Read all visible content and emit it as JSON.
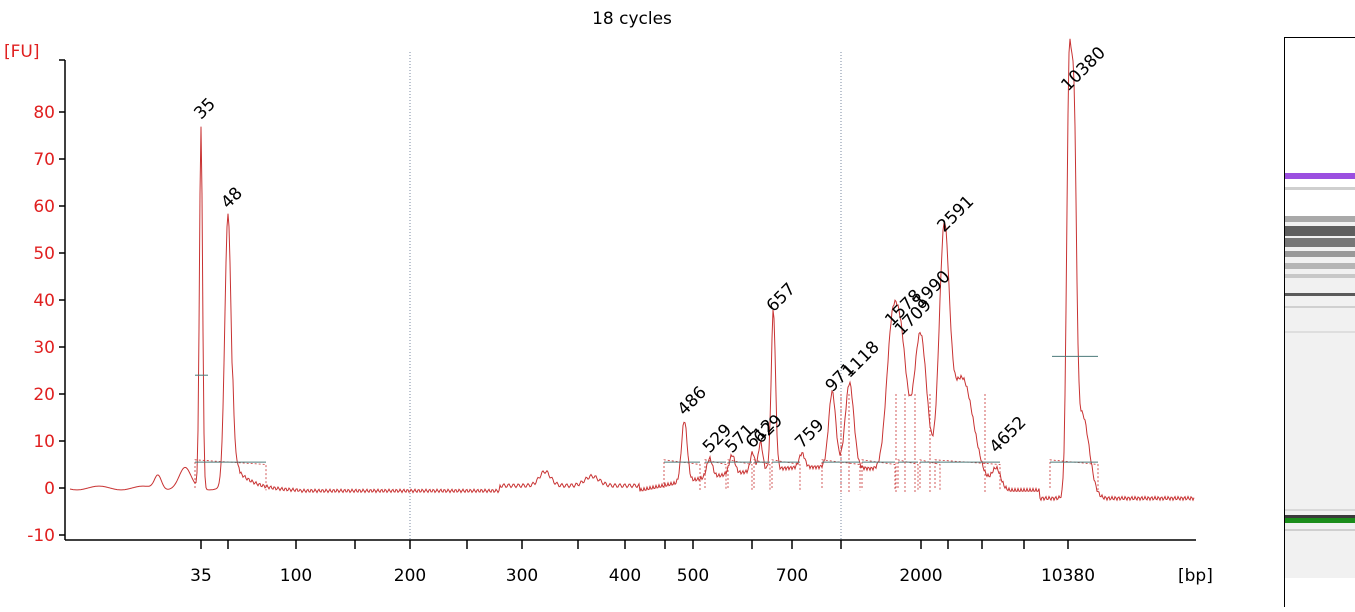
{
  "chart_data": {
    "type": "line",
    "title": "18 cycles",
    "ylabel": "[FU]",
    "xlabel": "[bp]",
    "ylim": [
      -10,
      90
    ],
    "yticks": [
      -10,
      0,
      10,
      20,
      30,
      40,
      50,
      60,
      70,
      80
    ],
    "xticks": [
      "35",
      "100",
      "200",
      "300",
      "400",
      "500",
      "700",
      "2000",
      "10380"
    ],
    "line_color": "#c83232",
    "marker_peaks": [
      {
        "label": "35",
        "bp": 35,
        "fu": 77,
        "color": "#1a8c1a"
      },
      {
        "label": "10380",
        "bp": 10380,
        "fu": 83,
        "color": "#9b4fe0"
      }
    ],
    "peaks": [
      {
        "label": "48",
        "bp": 48,
        "fu": 58
      },
      {
        "label": "486",
        "bp": 486,
        "fu": 14
      },
      {
        "label": "529",
        "bp": 529,
        "fu": 6
      },
      {
        "label": "571",
        "bp": 571,
        "fu": 6
      },
      {
        "label": "612",
        "bp": 612,
        "fu": 7
      },
      {
        "label": "629",
        "bp": 629,
        "fu": 8
      },
      {
        "label": "657",
        "bp": 657,
        "fu": 36
      },
      {
        "label": "759",
        "bp": 759,
        "fu": 7
      },
      {
        "label": "971",
        "bp": 971,
        "fu": 19
      },
      {
        "label": "1118",
        "bp": 1118,
        "fu": 22
      },
      {
        "label": "1578",
        "bp": 1578,
        "fu": 33
      },
      {
        "label": "1709",
        "bp": 1709,
        "fu": 31
      },
      {
        "label": "1990",
        "bp": 1990,
        "fu": 37
      },
      {
        "label": "2591",
        "bp": 2591,
        "fu": 53
      },
      {
        "label": "4652",
        "bp": 4652,
        "fu": 6
      }
    ]
  },
  "gel": {
    "upper_marker_color": "#9b4fe0",
    "lower_marker_color": "#1a8c1a"
  }
}
